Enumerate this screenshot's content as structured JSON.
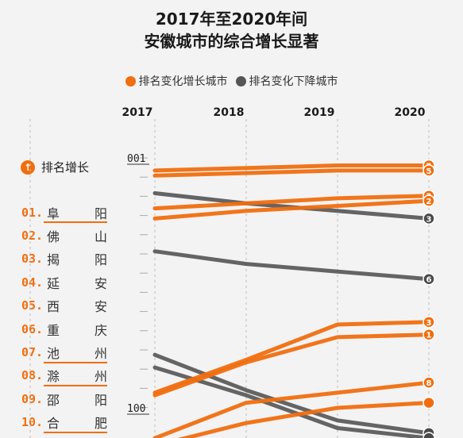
{
  "title_line1": "2017年至2020年间",
  "title_line2": "安徽城市的综合增长显著",
  "legend": [
    {
      "label": "排名变化增长城市",
      "color": "#f06e0f"
    },
    {
      "label": "排名变化下降城市",
      "color": "#555555"
    }
  ],
  "rank_header": {
    "icon": "up-arrow-icon",
    "label": "排名增长"
  },
  "rank_list": [
    {
      "num": "01.",
      "chars": [
        "阜",
        "阳"
      ],
      "underline": true
    },
    {
      "num": "02.",
      "chars": [
        "佛",
        "山"
      ],
      "underline": false
    },
    {
      "num": "03.",
      "chars": [
        "揭",
        "阳"
      ],
      "underline": false
    },
    {
      "num": "04.",
      "chars": [
        "延",
        "安"
      ],
      "underline": false
    },
    {
      "num": "05.",
      "chars": [
        "西",
        "安"
      ],
      "underline": false
    },
    {
      "num": "06.",
      "chars": [
        "重",
        "庆"
      ],
      "underline": false
    },
    {
      "num": "07.",
      "chars": [
        "池",
        "州"
      ],
      "underline": true
    },
    {
      "num": "08.",
      "chars": [
        "滁",
        "州"
      ],
      "underline": true
    },
    {
      "num": "09.",
      "chars": [
        "邵",
        "阳"
      ],
      "underline": false
    },
    {
      "num": "10.",
      "chars": [
        "合",
        "肥"
      ],
      "underline": true
    }
  ],
  "chart_data": {
    "type": "line",
    "x": [
      "2017",
      "2018",
      "2019",
      "2020"
    ],
    "y_axis_labels": [
      "001",
      "100"
    ],
    "y_scale": "rank (1 at top, inverted)",
    "grid": "vertical dashed lines at each year",
    "colors": {
      "increase": "#f06e0f",
      "decrease": "#4a4a4a"
    },
    "series": [
      {
        "kind": "increase",
        "values": [
          6,
          5,
          4,
          4
        ],
        "end_label": "2"
      },
      {
        "kind": "increase",
        "values": [
          8,
          7,
          6,
          6
        ],
        "end_label": "5"
      },
      {
        "kind": "increase",
        "values": [
          21,
          19,
          17,
          16
        ],
        "end_label": "2"
      },
      {
        "kind": "increase",
        "values": [
          25,
          22,
          20,
          18
        ],
        "end_label": "2"
      },
      {
        "kind": "decrease",
        "values": [
          15,
          19,
          22,
          25
        ],
        "end_label": "3"
      },
      {
        "kind": "decrease",
        "values": [
          38,
          43,
          46,
          49
        ],
        "end_label": "6"
      },
      {
        "kind": "increase",
        "values": [
          94,
          81,
          67,
          66
        ],
        "end_label": "3"
      },
      {
        "kind": "increase",
        "values": [
          95,
          82,
          72,
          71
        ],
        "end_label": "1"
      },
      {
        "kind": "decrease",
        "values": [
          79,
          93,
          105,
          110
        ],
        "end_label": ""
      },
      {
        "kind": "decrease",
        "values": [
          84,
          95,
          108,
          112
        ],
        "end_label": ""
      },
      {
        "kind": "increase",
        "values": [
          112,
          98,
          94,
          90
        ],
        "end_label": "8"
      },
      {
        "kind": "increase",
        "values": [
          115,
          106,
          100,
          98
        ],
        "end_label": ""
      }
    ]
  }
}
